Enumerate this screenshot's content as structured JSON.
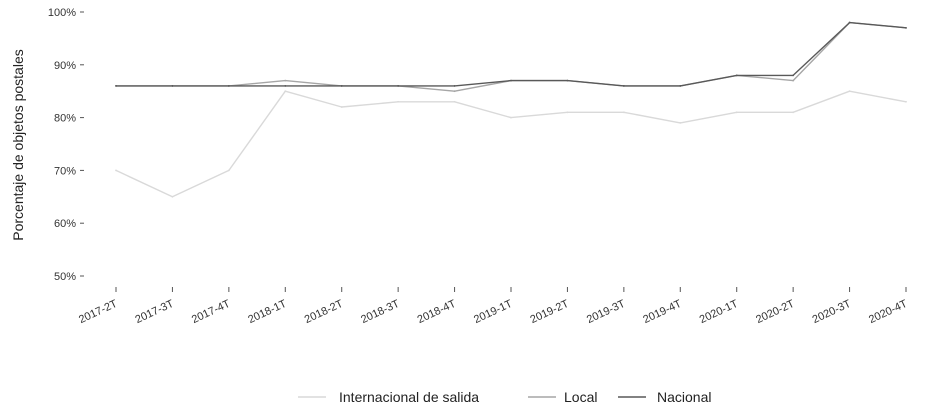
{
  "chart_data": {
    "type": "line",
    "title": "",
    "xlabel": "",
    "ylabel": "Porcentaje de objetos postales",
    "categories": [
      "2017-2T",
      "2017-3T",
      "2017-4T",
      "2018-1T",
      "2018-2T",
      "2018-3T",
      "2018-4T",
      "2019-1T",
      "2019-2T",
      "2019-3T",
      "2019-4T",
      "2020-1T",
      "2020-2T",
      "2020-3T",
      "2020-4T"
    ],
    "ylim": [
      50,
      100
    ],
    "yticks": [
      50,
      60,
      70,
      80,
      90,
      100
    ],
    "ytick_labels": [
      "50%",
      "60%",
      "70%",
      "80%",
      "90%",
      "100%"
    ],
    "grid": false,
    "legend_position": "bottom",
    "series": [
      {
        "name": "Internacional de salida",
        "color": "#d9d9d9",
        "values": [
          70,
          65,
          70,
          85,
          82,
          83,
          83,
          80,
          81,
          81,
          79,
          81,
          81,
          85,
          83
        ]
      },
      {
        "name": "Local",
        "color": "#a6a6a6",
        "values": [
          86,
          86,
          86,
          87,
          86,
          86,
          85,
          87,
          87,
          86,
          86,
          88,
          87,
          98,
          97
        ]
      },
      {
        "name": "Nacional",
        "color": "#595959",
        "values": [
          86,
          86,
          86,
          86,
          86,
          86,
          86,
          87,
          87,
          86,
          86,
          88,
          88,
          98,
          97
        ]
      }
    ]
  }
}
